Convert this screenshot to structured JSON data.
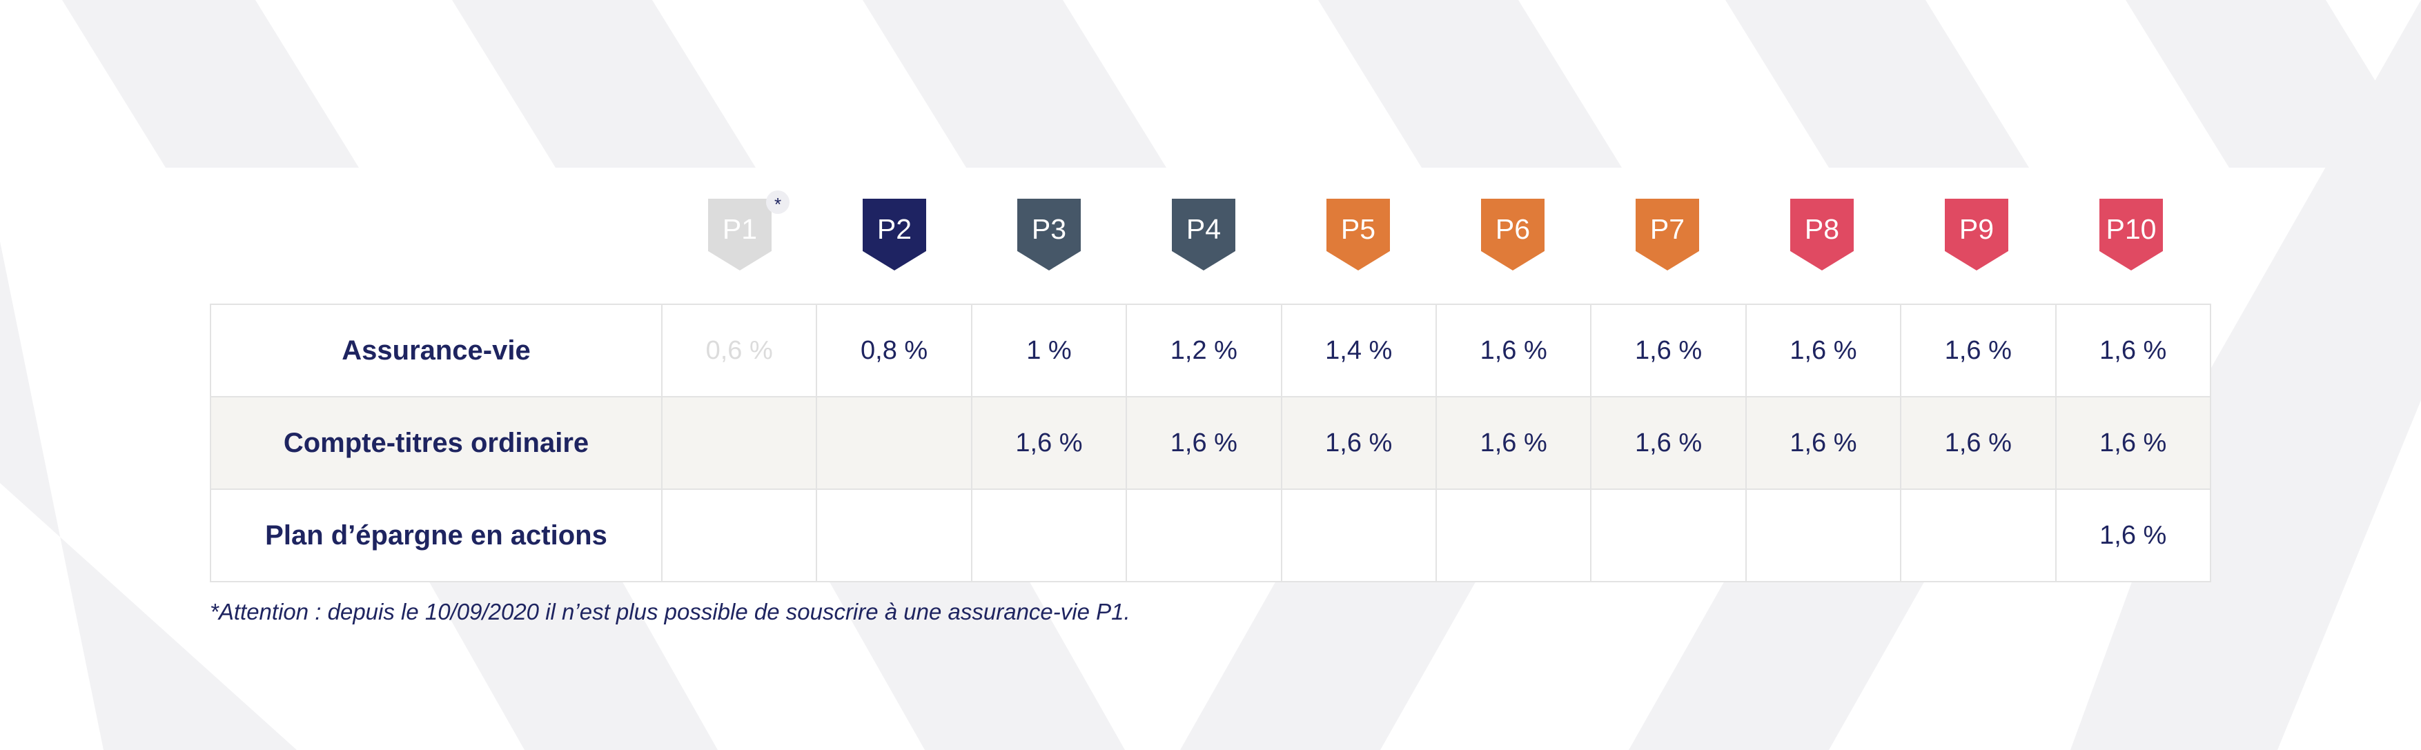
{
  "columns": [
    {
      "label": "P1",
      "color": "#dcdcdc",
      "note": "*"
    },
    {
      "label": "P2",
      "color": "#1e2362"
    },
    {
      "label": "P3",
      "color": "#465768"
    },
    {
      "label": "P4",
      "color": "#465768"
    },
    {
      "label": "P5",
      "color": "#e07b39"
    },
    {
      "label": "P6",
      "color": "#e07b39"
    },
    {
      "label": "P7",
      "color": "#e07b39"
    },
    {
      "label": "P8",
      "color": "#e04a62"
    },
    {
      "label": "P9",
      "color": "#e04a62"
    },
    {
      "label": "P10",
      "color": "#e04a62"
    }
  ],
  "rows": [
    {
      "label": "Assurance-vie",
      "values": [
        "0,6 %",
        "0,8 %",
        "1 %",
        "1,2 %",
        "1,4 %",
        "1,6 %",
        "1,6 %",
        "1,6 %",
        "1,6 %",
        "1,6 %"
      ]
    },
    {
      "label": "Compte-titres ordinaire",
      "values": [
        "",
        "",
        "1,6 %",
        "1,6 %",
        "1,6 %",
        "1,6 %",
        "1,6 %",
        "1,6 %",
        "1,6 %",
        "1,6 %"
      ]
    },
    {
      "label": "Plan d’épargne en actions",
      "values": [
        "",
        "",
        "",
        "",
        "",
        "",
        "",
        "",
        "",
        "1,6 %"
      ]
    }
  ],
  "footnote": "*Attention : depuis le 10/09/2020 il n’est plus possible de souscrire à une assurance-vie P1.",
  "colors": {
    "text": "#1e2460",
    "stripe": "#f2f2f4",
    "alt_row": "#f5f4f1",
    "border": "#e3e3e3"
  }
}
